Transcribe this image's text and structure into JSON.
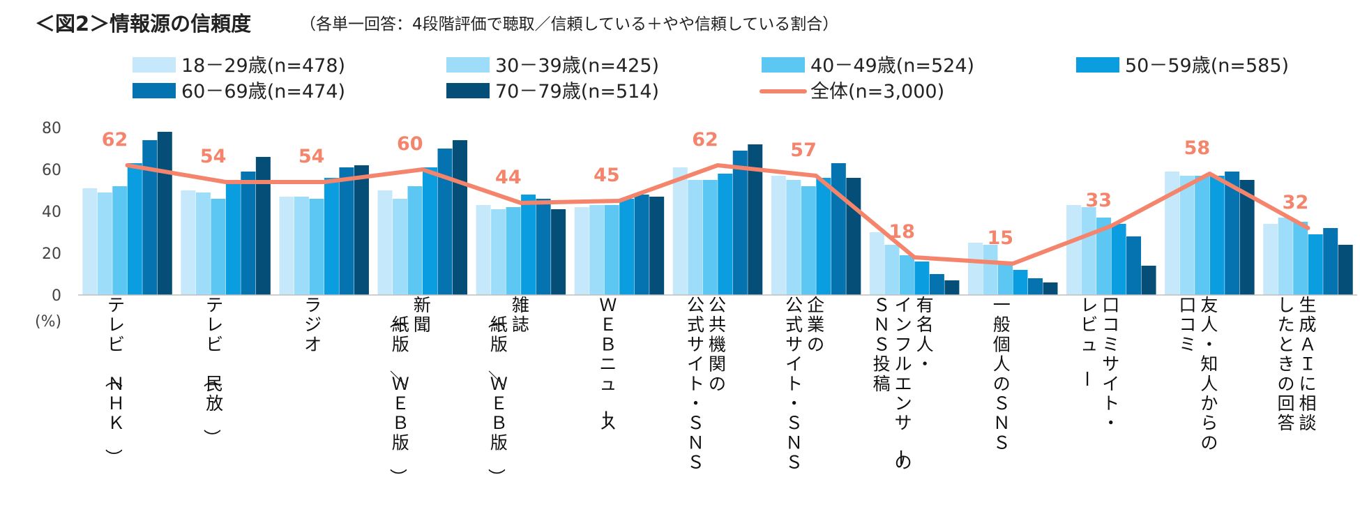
{
  "chart_data": {
    "type": "bar",
    "title": "＜図2＞情報源の信頼度",
    "subtitle": "（各単一回答：4段階評価で聴取／信頼している＋やや信頼している割合）",
    "y_unit": "(%)",
    "ylim": [
      0,
      80
    ],
    "yticks": [
      "0",
      "20",
      "40",
      "60",
      "80"
    ],
    "grid": false,
    "legend_position": "top",
    "categories": [
      [
        "テレビ（ＮＨＫ）"
      ],
      [
        "テレビ（民放）"
      ],
      [
        "ラジオ"
      ],
      [
        "新聞",
        "（紙版／ＷＥＢ版）"
      ],
      [
        "雑誌",
        "（紙版／ＷＥＢ版）"
      ],
      [
        "ＷＥＢニュース"
      ],
      [
        "公共機関の",
        "公式サイト・ＳＮＳ"
      ],
      [
        "企業の",
        "公式サイト・ＳＮＳ"
      ],
      [
        "有名人・",
        "インフルエンサーの",
        "ＳＮＳ投稿"
      ],
      [
        "一般個人のＳＮＳ"
      ],
      [
        "口コミサイト・",
        "レビュー"
      ],
      [
        "友人・知人からの",
        "口コミ"
      ],
      [
        "生成ＡＩに相談",
        "したときの回答"
      ]
    ],
    "series": [
      {
        "name": "18－29歳(n=478)",
        "color": "#C5E9FA",
        "values": [
          51,
          50,
          47,
          50,
          43,
          42,
          61,
          57,
          30,
          25,
          43,
          59,
          34
        ]
      },
      {
        "name": "30－39歳(n=425)",
        "color": "#9EDDF9",
        "values": [
          49,
          49,
          47,
          46,
          41,
          43,
          55,
          55,
          24,
          24,
          42,
          57,
          37
        ]
      },
      {
        "name": "40－49歳(n=524)",
        "color": "#5CC7F2",
        "values": [
          52,
          46,
          46,
          52,
          42,
          43,
          55,
          52,
          19,
          15,
          37,
          57,
          35
        ]
      },
      {
        "name": "50－59歳(n=585)",
        "color": "#0A9DE0",
        "values": [
          63,
          54,
          56,
          61,
          48,
          46,
          58,
          56,
          16,
          12,
          34,
          57,
          29
        ]
      },
      {
        "name": "60－69歳(n=474)",
        "color": "#0573B0",
        "values": [
          74,
          59,
          61,
          70,
          46,
          48,
          69,
          63,
          10,
          8,
          28,
          59,
          32
        ]
      },
      {
        "name": "70－79歳(n=514)",
        "color": "#054E78",
        "values": [
          78,
          66,
          62,
          74,
          41,
          47,
          72,
          56,
          7,
          6,
          14,
          55,
          24
        ]
      }
    ],
    "line_series": {
      "name": "全体(n=3,000)",
      "color": "#F4846B",
      "values": [
        62,
        54,
        54,
        60,
        44,
        45,
        62,
        57,
        18,
        15,
        33,
        58,
        32
      ]
    }
  }
}
